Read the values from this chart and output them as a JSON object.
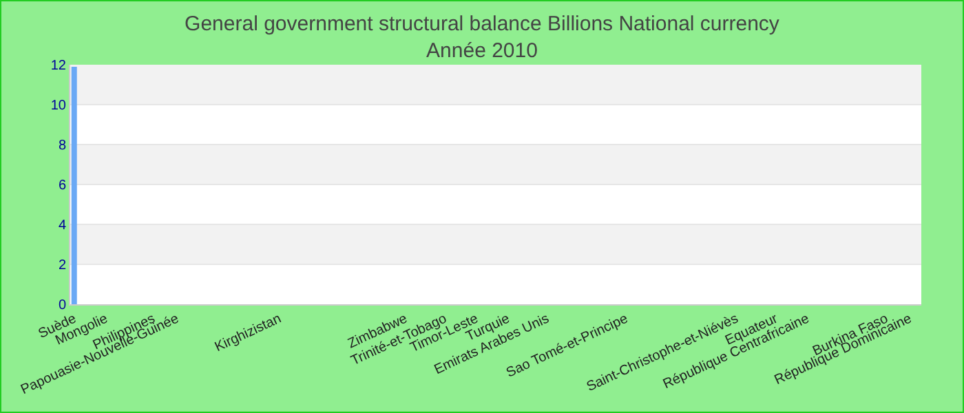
{
  "chart_data": {
    "type": "bar",
    "title": "General government structural balance Billions National currency",
    "subtitle": "Année 2010",
    "categories": [
      "Suède",
      null,
      null,
      null,
      "Mongolie",
      null,
      null,
      null,
      null,
      null,
      "Philippines",
      null,
      null,
      "Papouasie-Nouvelle-Guinée",
      null,
      null,
      null,
      null,
      null,
      null,
      null,
      null,
      null,
      null,
      null,
      null,
      "Kirghizistan",
      null,
      null,
      null,
      null,
      null,
      null,
      null,
      null,
      null,
      null,
      null,
      null,
      null,
      null,
      null,
      "Zimbabwe",
      null,
      null,
      null,
      null,
      "Trinité-et-Tobago",
      null,
      null,
      null,
      "Timor-Leste",
      null,
      null,
      null,
      "Turquie",
      null,
      null,
      null,
      null,
      "Emirats Arabes Unis",
      null,
      null,
      null,
      null,
      null,
      null,
      null,
      null,
      null,
      "Sao Tomé-et-Principe",
      null,
      null,
      null,
      null,
      null,
      null,
      null,
      null,
      null,
      null,
      null,
      null,
      null,
      "Saint-Christophe-et-Niévès",
      null,
      null,
      null,
      null,
      "Equateur",
      null,
      null,
      null,
      "République Centrafricaine",
      null,
      null,
      null,
      null,
      null,
      null,
      null,
      null,
      null,
      "Burkina Faso",
      null,
      null,
      "République Dominicaine",
      null
    ],
    "values": [
      11.9,
      0,
      0,
      0,
      0,
      0,
      0,
      0,
      0,
      0,
      0,
      0,
      0,
      0,
      0,
      0,
      0,
      0,
      0,
      0,
      0,
      0,
      0,
      0,
      0,
      0,
      0,
      0,
      0,
      0,
      0,
      0,
      0,
      0,
      0,
      0,
      0,
      0,
      0,
      0,
      0,
      0,
      0,
      0,
      0,
      0,
      0,
      0,
      0,
      0,
      0,
      0,
      0,
      0,
      0,
      0,
      0,
      0,
      0,
      0,
      0,
      0,
      0,
      0,
      0,
      0,
      0,
      0,
      0,
      0,
      0,
      0,
      0,
      0,
      0,
      0,
      0,
      0,
      0,
      0,
      0,
      0,
      0,
      0,
      0,
      0,
      0,
      0,
      0,
      0,
      0,
      0,
      0,
      0,
      0,
      0,
      0,
      0,
      0,
      0,
      0,
      0,
      0,
      0,
      0,
      0,
      0,
      0
    ],
    "color": "#6aa9f5",
    "ylim": [
      0,
      12
    ],
    "yticks": [
      0,
      2,
      4,
      6,
      8,
      10,
      12
    ],
    "grid": true
  }
}
